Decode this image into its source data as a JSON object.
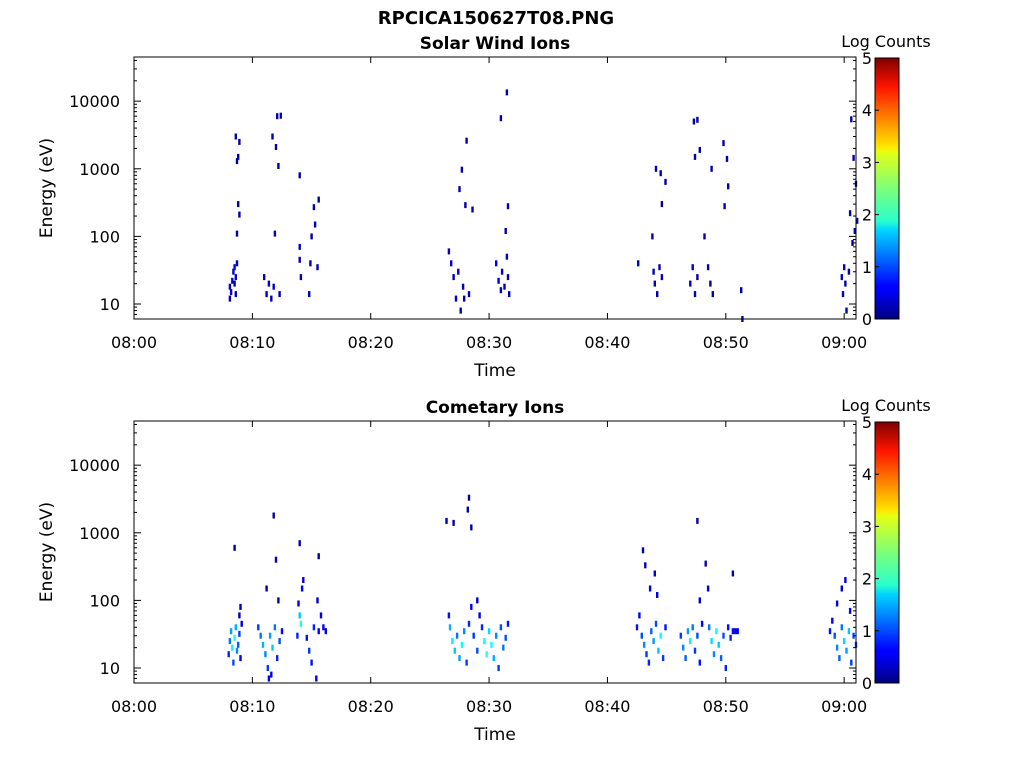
{
  "figure": {
    "title": "RPCICA150627T08.PNG"
  },
  "chart_data": [
    {
      "type": "heatmap",
      "title": "Solar Wind Ions",
      "xlabel": "Time",
      "ylabel": "Energy (eV)",
      "x_ticks": [
        "08:00",
        "08:10",
        "08:20",
        "08:30",
        "08:40",
        "08:50",
        "09:00"
      ],
      "x_tick_minutes": [
        0,
        10,
        20,
        30,
        40,
        50,
        60
      ],
      "xlim_minutes": [
        0,
        61
      ],
      "y_scale": "log",
      "ylim": [
        6,
        45000
      ],
      "y_ticks": [
        "10",
        "100",
        "1000",
        "10000"
      ],
      "y_tick_values": [
        10,
        100,
        1000,
        10000
      ],
      "colorbar": {
        "label": "Log Counts",
        "range": [
          0,
          5
        ],
        "ticks": [
          "0",
          "1",
          "2",
          "3",
          "4",
          "5"
        ],
        "colormap": "jet"
      },
      "grid": false,
      "cells": [
        [
          8.1,
          12,
          0.2
        ],
        [
          8.1,
          18,
          0.3
        ],
        [
          8.2,
          15,
          0.4
        ],
        [
          8.3,
          22,
          0.5
        ],
        [
          8.4,
          30,
          0.4
        ],
        [
          8.5,
          20,
          0.3
        ],
        [
          8.5,
          35,
          0.6
        ],
        [
          8.6,
          14,
          0.3
        ],
        [
          8.6,
          25,
          0.4
        ],
        [
          8.7,
          40,
          0.3
        ],
        [
          8.7,
          110,
          0.2
        ],
        [
          8.8,
          300,
          0.2
        ],
        [
          8.8,
          1500,
          0.2
        ],
        [
          8.9,
          2500,
          0.2
        ],
        [
          8.9,
          210,
          0.2
        ],
        [
          8.6,
          3000,
          0.2
        ],
        [
          8.7,
          1300,
          0.2
        ],
        [
          11.0,
          25,
          0.2
        ],
        [
          11.2,
          14,
          0.3
        ],
        [
          11.4,
          20,
          0.3
        ],
        [
          11.6,
          12,
          0.2
        ],
        [
          11.8,
          18,
          0.4
        ],
        [
          11.9,
          110,
          0.2
        ],
        [
          11.7,
          3000,
          0.2
        ],
        [
          12.0,
          2100,
          0.2
        ],
        [
          12.1,
          6000,
          0.2
        ],
        [
          12.4,
          6100,
          0.2
        ],
        [
          12.2,
          1100,
          0.2
        ],
        [
          12.3,
          14,
          0.2
        ],
        [
          14.0,
          45,
          0.3
        ],
        [
          14.0,
          70,
          0.3
        ],
        [
          14.1,
          25,
          0.2
        ],
        [
          14.0,
          800,
          0.2
        ],
        [
          14.8,
          14,
          0.2
        ],
        [
          14.9,
          40,
          0.2
        ],
        [
          15.0,
          100,
          0.2
        ],
        [
          15.2,
          270,
          0.2
        ],
        [
          15.3,
          150,
          0.2
        ],
        [
          15.5,
          35,
          0.2
        ],
        [
          15.6,
          350,
          0.2
        ],
        [
          26.6,
          60,
          0.3
        ],
        [
          26.8,
          40,
          0.4
        ],
        [
          27.0,
          25,
          0.3
        ],
        [
          27.2,
          12,
          0.3
        ],
        [
          27.4,
          30,
          0.3
        ],
        [
          27.6,
          8,
          0.2
        ],
        [
          27.8,
          18,
          0.3
        ],
        [
          27.9,
          12,
          0.2
        ],
        [
          27.5,
          500,
          0.2
        ],
        [
          27.7,
          970,
          0.2
        ],
        [
          28.0,
          290,
          0.2
        ],
        [
          28.1,
          2600,
          0.2
        ],
        [
          28.3,
          14,
          0.3
        ],
        [
          28.6,
          250,
          0.2
        ],
        [
          30.6,
          40,
          0.4
        ],
        [
          30.8,
          22,
          0.5
        ],
        [
          31.0,
          16,
          0.4
        ],
        [
          31.1,
          30,
          0.4
        ],
        [
          31.3,
          18,
          0.3
        ],
        [
          31.5,
          50,
          0.4
        ],
        [
          31.6,
          25,
          0.3
        ],
        [
          31.7,
          14,
          0.3
        ],
        [
          31.0,
          5600,
          0.2
        ],
        [
          31.5,
          13500,
          0.2
        ],
        [
          31.4,
          120,
          0.2
        ],
        [
          31.6,
          280,
          0.2
        ],
        [
          42.6,
          40,
          0.3
        ],
        [
          43.9,
          30,
          0.3
        ],
        [
          44.0,
          20,
          0.3
        ],
        [
          44.2,
          14,
          0.2
        ],
        [
          44.4,
          35,
          0.3
        ],
        [
          44.6,
          25,
          0.3
        ],
        [
          43.8,
          100,
          0.2
        ],
        [
          44.1,
          1000,
          0.2
        ],
        [
          44.5,
          860,
          0.2
        ],
        [
          44.6,
          300,
          0.2
        ],
        [
          44.9,
          640,
          0.2
        ],
        [
          47.0,
          20,
          0.3
        ],
        [
          47.2,
          35,
          0.3
        ],
        [
          47.4,
          14,
          0.3
        ],
        [
          47.6,
          25,
          0.2
        ],
        [
          47.3,
          5000,
          0.2
        ],
        [
          47.4,
          1500,
          0.2
        ],
        [
          47.6,
          5300,
          0.2
        ],
        [
          47.8,
          1900,
          0.2
        ],
        [
          48.2,
          100,
          0.2
        ],
        [
          48.5,
          35,
          0.2
        ],
        [
          48.7,
          20,
          0.2
        ],
        [
          48.9,
          14,
          0.2
        ],
        [
          48.8,
          1000,
          0.2
        ],
        [
          49.8,
          2400,
          0.2
        ],
        [
          49.9,
          280,
          0.2
        ],
        [
          50.1,
          1400,
          0.2
        ],
        [
          50.2,
          550,
          0.2
        ],
        [
          51.3,
          16,
          0.2
        ],
        [
          51.4,
          6,
          0.2
        ],
        [
          59.8,
          25,
          0.3
        ],
        [
          59.9,
          14,
          0.3
        ],
        [
          60.0,
          35,
          0.3
        ],
        [
          60.1,
          20,
          0.2
        ],
        [
          60.2,
          8,
          0.2
        ],
        [
          60.4,
          30,
          0.3
        ],
        [
          60.5,
          220,
          0.2
        ],
        [
          60.6,
          5400,
          0.2
        ],
        [
          60.8,
          1450,
          0.2
        ],
        [
          61.0,
          600,
          0.2
        ],
        [
          61.1,
          170,
          0.2
        ],
        [
          60.9,
          120,
          0.2
        ],
        [
          60.7,
          80,
          0.2
        ]
      ]
    },
    {
      "type": "heatmap",
      "title": "Cometary Ions",
      "xlabel": "Time",
      "ylabel": "Energy (eV)",
      "x_ticks": [
        "08:00",
        "08:10",
        "08:20",
        "08:30",
        "08:40",
        "08:50",
        "09:00"
      ],
      "x_tick_minutes": [
        0,
        10,
        20,
        30,
        40,
        50,
        60
      ],
      "xlim_minutes": [
        0,
        61
      ],
      "y_scale": "log",
      "ylim": [
        6,
        45000
      ],
      "y_ticks": [
        "10",
        "100",
        "1000",
        "10000"
      ],
      "y_tick_values": [
        10,
        100,
        1000,
        10000
      ],
      "colorbar": {
        "label": "Log Counts",
        "range": [
          0,
          5
        ],
        "ticks": [
          "0",
          "1",
          "2",
          "3",
          "4",
          "5"
        ],
        "colormap": "jet"
      },
      "grid": false,
      "cells": [
        [
          8.0,
          16,
          0.8
        ],
        [
          8.1,
          25,
          1.2
        ],
        [
          8.2,
          35,
          1.4
        ],
        [
          8.3,
          20,
          1.8
        ],
        [
          8.4,
          12,
          1.0
        ],
        [
          8.5,
          28,
          2.0
        ],
        [
          8.6,
          40,
          1.5
        ],
        [
          8.7,
          18,
          1.3
        ],
        [
          8.8,
          22,
          1.1
        ],
        [
          8.9,
          32,
          0.9
        ],
        [
          9.0,
          14,
          0.6
        ],
        [
          9.1,
          45,
          0.5
        ],
        [
          8.5,
          600,
          0.2
        ],
        [
          9.0,
          80,
          0.3
        ],
        [
          8.9,
          60,
          0.2
        ],
        [
          10.5,
          40,
          0.9
        ],
        [
          10.7,
          30,
          1.2
        ],
        [
          10.9,
          22,
          1.5
        ],
        [
          11.1,
          16,
          1.3
        ],
        [
          11.3,
          10,
          0.9
        ],
        [
          11.5,
          30,
          1.4
        ],
        [
          11.7,
          20,
          1.6
        ],
        [
          11.9,
          40,
          1.2
        ],
        [
          12.1,
          14,
          0.8
        ],
        [
          12.3,
          25,
          1.0
        ],
        [
          11.4,
          7,
          0.6
        ],
        [
          11.6,
          8,
          0.5
        ],
        [
          11.2,
          150,
          0.2
        ],
        [
          11.8,
          1800,
          0.2
        ],
        [
          12.0,
          400,
          0.2
        ],
        [
          12.2,
          100,
          0.2
        ],
        [
          12.5,
          35,
          0.6
        ],
        [
          13.8,
          30,
          0.8
        ],
        [
          13.9,
          90,
          0.5
        ],
        [
          14.0,
          60,
          1.6
        ],
        [
          14.1,
          45,
          2.0
        ],
        [
          14.2,
          150,
          0.6
        ],
        [
          14.0,
          700,
          0.2
        ],
        [
          14.3,
          200,
          0.4
        ],
        [
          14.6,
          28,
          0.7
        ],
        [
          14.8,
          18,
          0.9
        ],
        [
          15.0,
          12,
          0.7
        ],
        [
          15.2,
          40,
          0.8
        ],
        [
          15.4,
          7,
          0.5
        ],
        [
          15.5,
          100,
          0.4
        ],
        [
          15.6,
          35,
          0.6
        ],
        [
          15.8,
          60,
          0.5
        ],
        [
          16.0,
          40,
          0.6
        ],
        [
          16.2,
          35,
          0.5
        ],
        [
          15.6,
          450,
          0.2
        ],
        [
          26.4,
          1500,
          0.2
        ],
        [
          27.0,
          1400,
          0.2
        ],
        [
          28.2,
          2200,
          0.2
        ],
        [
          28.3,
          3300,
          0.2
        ],
        [
          28.5,
          1200,
          0.2
        ],
        [
          26.6,
          60,
          0.7
        ],
        [
          26.7,
          40,
          1.5
        ],
        [
          26.9,
          25,
          1.8
        ],
        [
          27.1,
          18,
          1.6
        ],
        [
          27.3,
          30,
          1.2
        ],
        [
          27.5,
          14,
          1.4
        ],
        [
          27.7,
          22,
          1.9
        ],
        [
          27.9,
          35,
          1.3
        ],
        [
          28.1,
          12,
          0.9
        ],
        [
          28.3,
          45,
          0.8
        ],
        [
          28.5,
          80,
          0.6
        ],
        [
          28.7,
          30,
          0.9
        ],
        [
          29.0,
          18,
          1.0
        ],
        [
          29.2,
          60,
          0.5
        ],
        [
          29.4,
          40,
          0.8
        ],
        [
          29.6,
          25,
          1.9
        ],
        [
          29.8,
          16,
          2.1
        ],
        [
          30.0,
          35,
          1.7
        ],
        [
          30.2,
          22,
          1.9
        ],
        [
          30.4,
          14,
          1.5
        ],
        [
          30.6,
          30,
          1.3
        ],
        [
          30.8,
          10,
          0.9
        ],
        [
          31.0,
          40,
          1.0
        ],
        [
          31.2,
          20,
          1.2
        ],
        [
          31.4,
          28,
          1.0
        ],
        [
          31.6,
          45,
          0.7
        ],
        [
          29.0,
          100,
          0.3
        ],
        [
          42.5,
          40,
          0.7
        ],
        [
          42.7,
          60,
          0.6
        ],
        [
          42.9,
          30,
          1.0
        ],
        [
          43.1,
          22,
          1.3
        ],
        [
          43.3,
          16,
          0.9
        ],
        [
          43.5,
          12,
          0.8
        ],
        [
          43.7,
          35,
          1.1
        ],
        [
          43.9,
          25,
          1.4
        ],
        [
          44.1,
          45,
          1.0
        ],
        [
          44.3,
          18,
          1.6
        ],
        [
          44.5,
          30,
          1.9
        ],
        [
          44.7,
          14,
          0.9
        ],
        [
          44.9,
          40,
          0.7
        ],
        [
          43.0,
          550,
          0.2
        ],
        [
          43.2,
          330,
          0.3
        ],
        [
          43.6,
          150,
          0.4
        ],
        [
          44.0,
          250,
          0.4
        ],
        [
          44.2,
          120,
          0.5
        ],
        [
          46.2,
          30,
          0.9
        ],
        [
          46.4,
          20,
          1.3
        ],
        [
          46.6,
          14,
          1.1
        ],
        [
          46.8,
          35,
          1.4
        ],
        [
          47.0,
          25,
          1.8
        ],
        [
          47.2,
          40,
          1.2
        ],
        [
          47.4,
          18,
          0.9
        ],
        [
          47.6,
          30,
          1.0
        ],
        [
          47.8,
          12,
          0.7
        ],
        [
          48.0,
          45,
          0.6
        ],
        [
          47.6,
          1500,
          0.2
        ],
        [
          47.8,
          100,
          0.4
        ],
        [
          48.3,
          350,
          0.2
        ],
        [
          48.5,
          150,
          0.4
        ],
        [
          48.6,
          40,
          1.2
        ],
        [
          48.8,
          25,
          1.7
        ],
        [
          49.0,
          16,
          1.3
        ],
        [
          49.2,
          35,
          1.9
        ],
        [
          49.4,
          22,
          1.6
        ],
        [
          49.6,
          14,
          1.1
        ],
        [
          49.8,
          30,
          1.0
        ],
        [
          50.0,
          10,
          0.8
        ],
        [
          50.2,
          40,
          0.7
        ],
        [
          50.4,
          28,
          0.8
        ],
        [
          50.6,
          35,
          0.6
        ],
        [
          50.8,
          35,
          0.5
        ],
        [
          51.0,
          35,
          0.6
        ],
        [
          50.6,
          250,
          0.2
        ],
        [
          58.8,
          35,
          0.7
        ],
        [
          59.0,
          50,
          0.6
        ],
        [
          59.2,
          30,
          1.0
        ],
        [
          59.4,
          20,
          1.3
        ],
        [
          59.6,
          14,
          1.1
        ],
        [
          59.8,
          40,
          1.2
        ],
        [
          60.0,
          25,
          1.7
        ],
        [
          60.2,
          18,
          1.4
        ],
        [
          60.4,
          35,
          1.6
        ],
        [
          60.6,
          12,
          0.9
        ],
        [
          60.8,
          30,
          1.0
        ],
        [
          61.0,
          22,
          0.9
        ],
        [
          59.4,
          90,
          0.5
        ],
        [
          59.8,
          150,
          0.4
        ],
        [
          60.1,
          200,
          0.5
        ],
        [
          60.5,
          70,
          0.6
        ]
      ]
    }
  ]
}
